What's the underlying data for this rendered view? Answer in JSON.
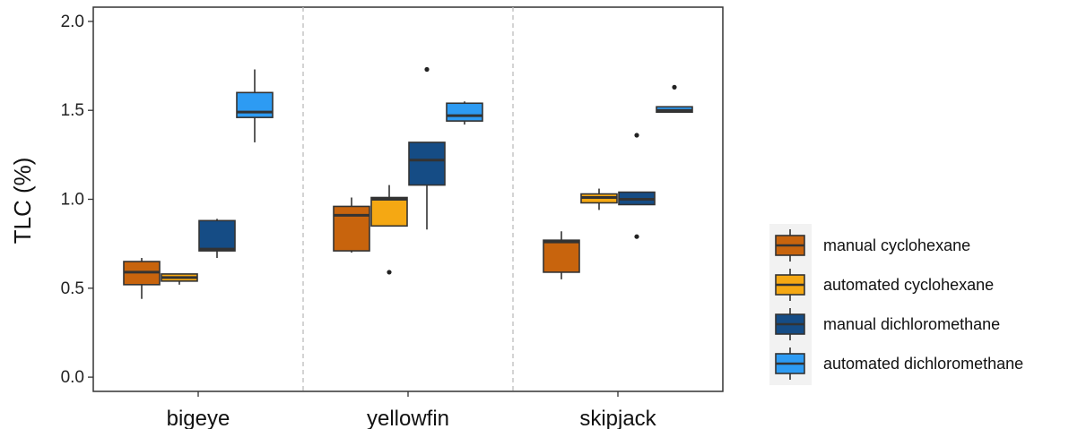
{
  "chart_data": {
    "type": "box",
    "ylabel": "TLC (%)",
    "xlabel": "",
    "ylim": [
      -0.08,
      2.08
    ],
    "yticks": [
      "0.0",
      "0.5",
      "1.0",
      "1.5",
      "2.0"
    ],
    "grid": false,
    "legend_position": "right",
    "categories": [
      "bigeye",
      "yellowfin",
      "skipjack"
    ],
    "series": [
      {
        "name": "manual cyclohexane",
        "color": "#c8640d",
        "boxes": [
          {
            "whisker_low": 0.44,
            "q1": 0.52,
            "median": 0.59,
            "q3": 0.65,
            "whisker_high": 0.67,
            "outliers": []
          },
          {
            "whisker_low": 0.7,
            "q1": 0.71,
            "median": 0.91,
            "q3": 0.96,
            "whisker_high": 1.01,
            "outliers": []
          },
          {
            "whisker_low": 0.55,
            "q1": 0.59,
            "median": 0.76,
            "q3": 0.77,
            "whisker_high": 0.82,
            "outliers": []
          }
        ]
      },
      {
        "name": "automated cyclohexane",
        "color": "#f5a813",
        "boxes": [
          {
            "whisker_low": 0.52,
            "q1": 0.54,
            "median": 0.56,
            "q3": 0.58,
            "whisker_high": 0.58,
            "outliers": []
          },
          {
            "whisker_low": 0.85,
            "q1": 0.85,
            "median": 1.0,
            "q3": 1.01,
            "whisker_high": 1.08,
            "outliers": [
              0.59
            ]
          },
          {
            "whisker_low": 0.94,
            "q1": 0.98,
            "median": 1.01,
            "q3": 1.03,
            "whisker_high": 1.06,
            "outliers": []
          }
        ]
      },
      {
        "name": "manual dichloromethane",
        "color": "#154c85",
        "boxes": [
          {
            "whisker_low": 0.67,
            "q1": 0.71,
            "median": 0.72,
            "q3": 0.88,
            "whisker_high": 0.89,
            "outliers": []
          },
          {
            "whisker_low": 0.83,
            "q1": 1.08,
            "median": 1.22,
            "q3": 1.32,
            "whisker_high": 1.32,
            "outliers": [
              1.73
            ]
          },
          {
            "whisker_low": 0.97,
            "q1": 0.97,
            "median": 1.0,
            "q3": 1.04,
            "whisker_high": 1.04,
            "outliers": [
              0.79,
              1.36
            ]
          }
        ]
      },
      {
        "name": "automated dichloromethane",
        "color": "#2d9bf3",
        "boxes": [
          {
            "whisker_low": 1.32,
            "q1": 1.46,
            "median": 1.49,
            "q3": 1.6,
            "whisker_high": 1.73,
            "outliers": []
          },
          {
            "whisker_low": 1.42,
            "q1": 1.44,
            "median": 1.47,
            "q3": 1.54,
            "whisker_high": 1.55,
            "outliers": []
          },
          {
            "whisker_low": 1.49,
            "q1": 1.49,
            "median": 1.5,
            "q3": 1.52,
            "whisker_high": 1.52,
            "outliers": [
              1.63
            ]
          }
        ]
      }
    ]
  }
}
